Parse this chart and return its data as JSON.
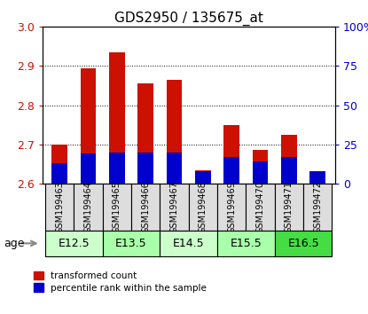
{
  "title": "GDS2950 / 135675_at",
  "samples": [
    "GSM199463",
    "GSM199464",
    "GSM199465",
    "GSM199466",
    "GSM199467",
    "GSM199468",
    "GSM199469",
    "GSM199470",
    "GSM199471",
    "GSM199472"
  ],
  "red_values": [
    2.7,
    2.895,
    2.935,
    2.855,
    2.865,
    2.635,
    2.75,
    2.685,
    2.725,
    2.625
  ],
  "blue_fractions": [
    0.13,
    0.19,
    0.2,
    0.2,
    0.2,
    0.08,
    0.17,
    0.14,
    0.17,
    0.08
  ],
  "ymin": 2.6,
  "ymax": 3.0,
  "yticks": [
    2.6,
    2.7,
    2.8,
    2.9,
    3.0
  ],
  "right_yticks": [
    0,
    25,
    50,
    75,
    100
  ],
  "right_ylabels": [
    "0",
    "25",
    "50",
    "75",
    "100%"
  ],
  "age_groups": [
    {
      "label": "E12.5",
      "cols": [
        0,
        1
      ],
      "color": "#ccffcc"
    },
    {
      "label": "E13.5",
      "cols": [
        2,
        3
      ],
      "color": "#aaffaa"
    },
    {
      "label": "E14.5",
      "cols": [
        4,
        5
      ],
      "color": "#ccffcc"
    },
    {
      "label": "E15.5",
      "cols": [
        6,
        7
      ],
      "color": "#aaffaa"
    },
    {
      "label": "E16.5",
      "cols": [
        8,
        9
      ],
      "color": "#44dd44"
    }
  ],
  "bar_color_red": "#cc1100",
  "bar_color_blue": "#0000cc",
  "bar_width": 0.55,
  "legend_red": "transformed count",
  "legend_blue": "percentile rank within the sample",
  "ylabel_right_color": "#0000cc",
  "title_fontsize": 11,
  "tick_fontsize": 9
}
